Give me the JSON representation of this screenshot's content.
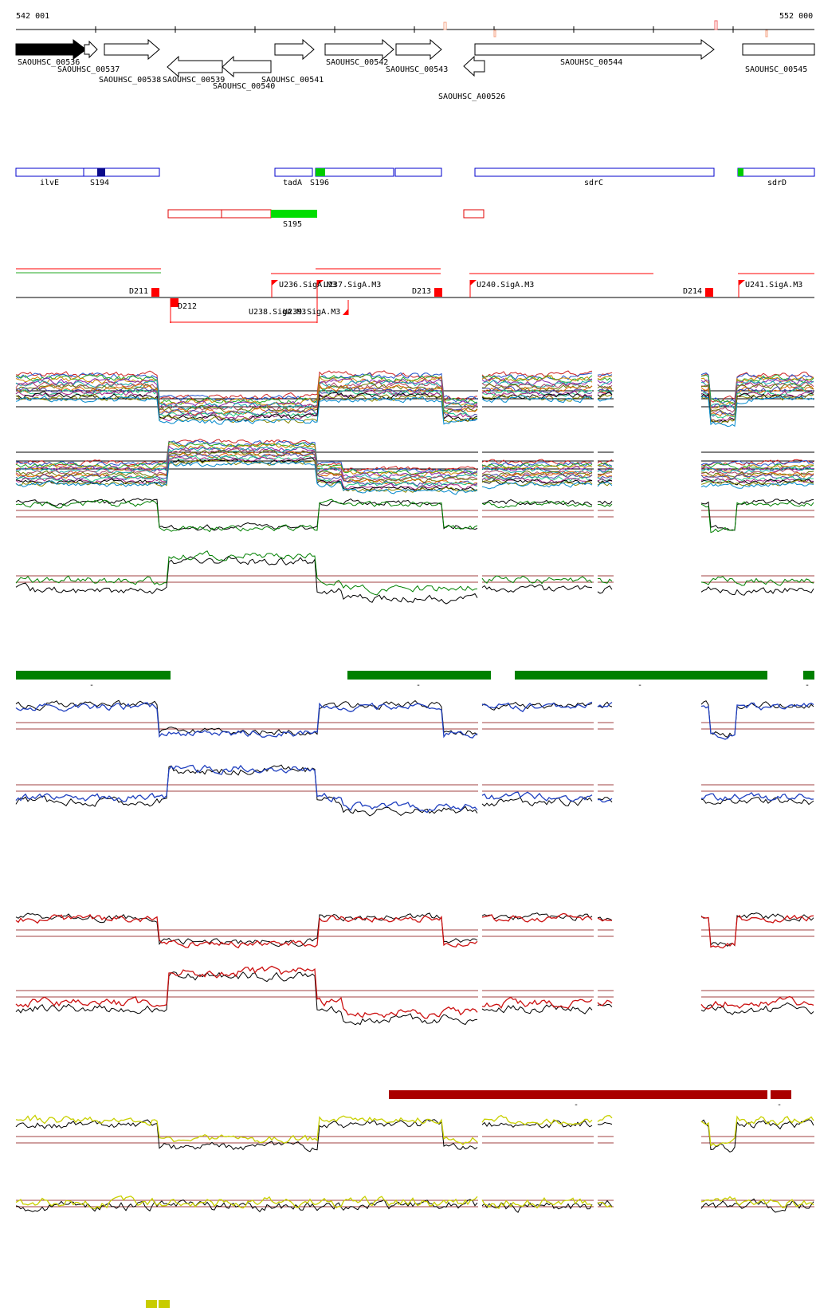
{
  "coordinates": {
    "start": "542 001",
    "end": "552 000"
  },
  "genes": [
    {
      "name": "SAOUHSC_00536",
      "strand": "+",
      "filled": true
    },
    {
      "name": "SAOUHSC_00537",
      "strand": "+"
    },
    {
      "name": "SAOUHSC_00538",
      "strand": "+"
    },
    {
      "name": "SAOUHSC_00539",
      "strand": "-"
    },
    {
      "name": "SAOUHSC_00540",
      "strand": "-"
    },
    {
      "name": "SAOUHSC_00541",
      "strand": "+"
    },
    {
      "name": "SAOUHSC_00542",
      "strand": "+"
    },
    {
      "name": "SAOUHSC_00543",
      "strand": "+"
    },
    {
      "name": "SAOUHSC_A00526",
      "strand": "-"
    },
    {
      "name": "SAOUHSC_00544",
      "strand": "+"
    },
    {
      "name": "SAOUHSC_00545",
      "strand": "+"
    }
  ],
  "annotation_labels": [
    "ilvE",
    "S194",
    "tadA",
    "S196",
    "sdrC",
    "sdrD",
    "S195"
  ],
  "promoter_labels": [
    "D211",
    "D212",
    "U236.SigA.M3",
    "U237.SigA.M3",
    "U238.SigA.M3",
    "U239.SigA.M3",
    "D213",
    "U240.SigA.M3",
    "D214",
    "U241.SigA.M3"
  ],
  "tick_marks": [
    "-",
    "-",
    "-",
    "-",
    "-",
    "-",
    "-",
    "-"
  ],
  "colors": {
    "gene_outline": "#000000",
    "annotation_box": "#0000cc",
    "annotation_fill": "#00cc00",
    "highlight_dark": "#0a0a8a",
    "red": "#ff0000",
    "green_track": "#008000",
    "blue_track": "#1f3fbf",
    "red_track": "#cc1111",
    "dark_red_bar": "#aa0000",
    "yellow_track": "#c8d000",
    "yellow_bar": "#c8cc00",
    "threshold": "#a04040"
  }
}
